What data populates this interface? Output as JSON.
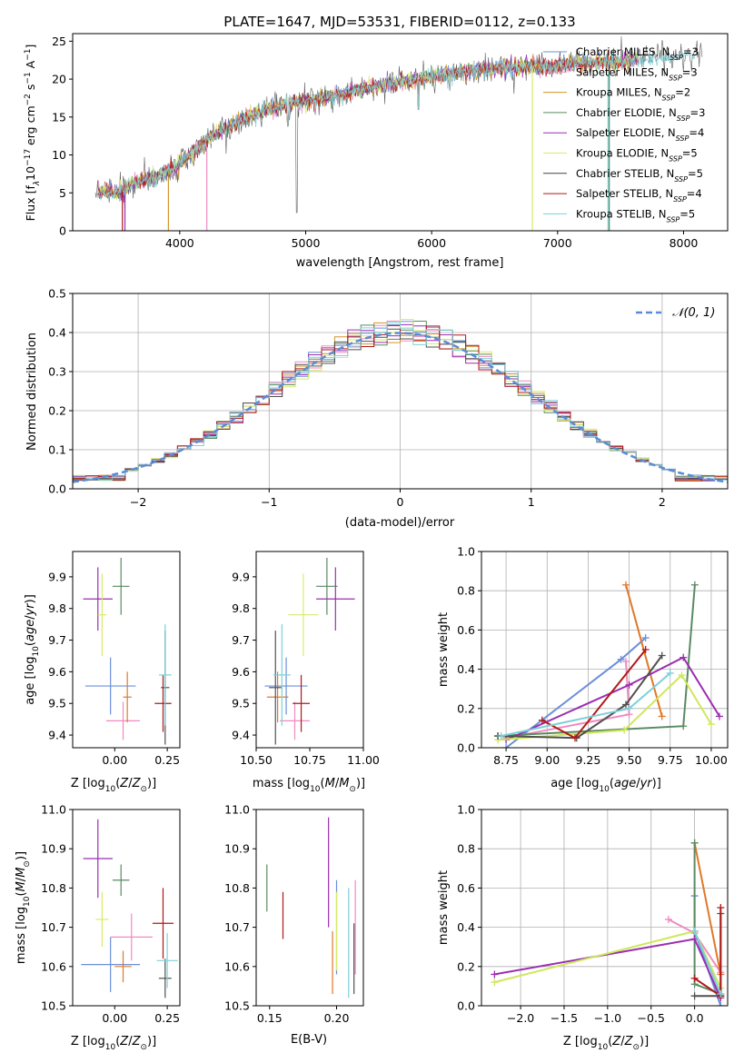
{
  "colors": {
    "series": [
      "#6a8fd8",
      "#f08ac0",
      "#d4932a",
      "#5a8a62",
      "#9a2fb0",
      "#d8ea6a",
      "#505050",
      "#b01818",
      "#7ed0d8"
    ],
    "errorbars": [
      "#6a8fd8",
      "#f08ac0",
      "#e07828",
      "#5a8a62",
      "#9a2fb0",
      "#d8ea6a",
      "#505050",
      "#b01818",
      "#7ed0d8"
    ],
    "weights": [
      "#6a8fd8",
      "#f08ac0",
      "#e07828",
      "#5a8a62",
      "#9a2fb0",
      "#cfe85a",
      "#505050",
      "#b01818",
      "#7ed0d8"
    ],
    "gauss": "#5b8bd6",
    "grid": "#b0b0b0"
  },
  "chart_data": [
    {
      "id": "spectrum",
      "type": "line",
      "title": "PLATE=1647, MJD=53531, FIBERID=0112, z=0.133",
      "xlabel": "wavelength [Angstrom, rest frame]",
      "ylabel": "Flux [f_λ10^-17 erg cm^-2 s^-1 A^-1]",
      "xlim": [
        3150,
        8350
      ],
      "ylim": [
        0,
        26
      ],
      "xticks": [
        4000,
        5000,
        6000,
        7000,
        8000
      ],
      "yticks": [
        0,
        5,
        10,
        15,
        20,
        25
      ],
      "legend": [
        "Chabrier MILES, N_SSP=3",
        "Salpeter MILES, N_SSP=3",
        "Kroupa MILES, N_SSP=2",
        "Chabrier ELODIE, N_SSP=3",
        "Salpeter ELODIE, N_SSP=4",
        "Kroupa ELODIE, N_SSP=5",
        "Chabrier STELIB, N_SSP=5",
        "Salpeter STELIB, N_SSP=4",
        "Kroupa STELIB, N_SSP=5"
      ],
      "legend_position": "upper right",
      "wavelength": [
        3350,
        3500,
        3650,
        3800,
        3950,
        4100,
        4250,
        4400,
        4550,
        4700,
        4850,
        5000,
        5150,
        5300,
        5450,
        5600,
        5750,
        5900,
        6050,
        6200,
        6350,
        6500,
        6650,
        6800,
        6950,
        7100,
        7250,
        7400,
        7550,
        7700,
        7850,
        8000,
        8100
      ],
      "flux": [
        5.2,
        5.0,
        6.5,
        7.0,
        8.3,
        10.2,
        12.5,
        13.8,
        15.1,
        16.0,
        16.8,
        17.2,
        17.5,
        18.1,
        18.7,
        19.2,
        19.6,
        20.0,
        20.5,
        20.9,
        21.2,
        21.4,
        21.6,
        21.8,
        21.5,
        22.0,
        22.2,
        22.1,
        22.4,
        22.6,
        22.9,
        23.1,
        23.3
      ],
      "grid": false
    },
    {
      "id": "residuals",
      "type": "histogram",
      "xlabel": "(data-model)/error",
      "ylabel": "Normed distribution",
      "xlim": [
        -2.5,
        2.5
      ],
      "ylim": [
        0,
        0.5
      ],
      "xticks": [
        -2,
        -1,
        0,
        1,
        2
      ],
      "yticks": [
        0.0,
        0.1,
        0.2,
        0.3,
        0.4,
        0.5
      ],
      "legend": [
        "𝒩(0, 1)"
      ],
      "legend_position": "upper right",
      "bin_width": 0.1,
      "grid": true
    },
    {
      "id": "age_vs_Z",
      "type": "errorbar",
      "xlabel": "Z [log10(Z/Z⊙)]",
      "ylabel": "age  [log10(age/yr)]",
      "xlim": [
        -0.2,
        0.31
      ],
      "ylim": [
        9.36,
        9.98
      ],
      "xticks": [
        0.0,
        0.25
      ],
      "xticklabels": [
        "0.00",
        "0.25"
      ],
      "yticks": [
        9.4,
        9.5,
        9.6,
        9.7,
        9.8,
        9.9
      ],
      "points": [
        {
          "x": -0.02,
          "xerr": 0.12,
          "y": 9.555,
          "yerr": 0.09
        },
        {
          "x": 0.04,
          "xerr": 0.08,
          "y": 9.445,
          "yerr": 0.06
        },
        {
          "x": 0.06,
          "xerr": 0.02,
          "y": 9.52,
          "yerr": 0.08
        },
        {
          "x": 0.03,
          "xerr": 0.04,
          "y": 9.87,
          "yerr": 0.09
        },
        {
          "x": -0.08,
          "xerr": 0.07,
          "y": 9.83,
          "yerr": 0.1
        },
        {
          "x": -0.06,
          "xerr": 0.02,
          "y": 9.78,
          "yerr": 0.13
        },
        {
          "x": 0.24,
          "xerr": 0.02,
          "y": 9.55,
          "yerr": 0.18
        },
        {
          "x": 0.23,
          "xerr": 0.04,
          "y": 9.5,
          "yerr": 0.09
        },
        {
          "x": 0.24,
          "xerr": 0.03,
          "y": 9.59,
          "yerr": 0.16
        }
      ]
    },
    {
      "id": "age_vs_mass",
      "type": "errorbar",
      "xlabel": "mass [log10(M/M⊙)]",
      "xlim": [
        10.5,
        11.0
      ],
      "ylim": [
        9.36,
        9.98
      ],
      "xticks": [
        10.5,
        10.75,
        11.0
      ],
      "xticklabels": [
        "10.50",
        "10.75",
        "11.00"
      ],
      "yticks": [
        9.4,
        9.5,
        9.6,
        9.7,
        9.8,
        9.9
      ],
      "points": [
        {
          "x": 10.64,
          "xerr": 0.1,
          "y": 9.555,
          "yerr": 0.09
        },
        {
          "x": 10.68,
          "xerr": 0.07,
          "y": 9.445,
          "yerr": 0.06
        },
        {
          "x": 10.6,
          "xerr": 0.05,
          "y": 9.52,
          "yerr": 0.08
        },
        {
          "x": 10.83,
          "xerr": 0.05,
          "y": 9.87,
          "yerr": 0.09
        },
        {
          "x": 10.87,
          "xerr": 0.09,
          "y": 9.83,
          "yerr": 0.1
        },
        {
          "x": 10.72,
          "xerr": 0.07,
          "y": 9.78,
          "yerr": 0.13
        },
        {
          "x": 10.59,
          "xerr": 0.03,
          "y": 9.55,
          "yerr": 0.18
        },
        {
          "x": 10.71,
          "xerr": 0.04,
          "y": 9.5,
          "yerr": 0.09
        },
        {
          "x": 10.62,
          "xerr": 0.04,
          "y": 9.59,
          "yerr": 0.16
        }
      ]
    },
    {
      "id": "weights_vs_age",
      "type": "line",
      "xlabel": "age  [log10(age/yr)]",
      "ylabel": "mass weight",
      "xlim": [
        8.6,
        10.1
      ],
      "ylim": [
        0.0,
        1.0
      ],
      "xticks": [
        8.75,
        9.0,
        9.25,
        9.5,
        9.75,
        10.0
      ],
      "xticklabels": [
        "8.75",
        "9.00",
        "9.25",
        "9.50",
        "9.75",
        "10.00"
      ],
      "yticks": [
        0.0,
        0.2,
        0.4,
        0.6,
        0.8,
        1.0
      ],
      "grid": true,
      "series": [
        {
          "x": [
            8.75,
            9.45,
            9.6
          ],
          "y": [
            0.0,
            0.45,
            0.56
          ]
        },
        {
          "x": [
            8.75,
            9.5,
            9.48
          ],
          "y": [
            0.05,
            0.17,
            0.44
          ]
        },
        {
          "x": [
            9.48,
            9.7
          ],
          "y": [
            0.83,
            0.16
          ]
        },
        {
          "x": [
            8.7,
            9.83,
            9.9
          ],
          "y": [
            0.06,
            0.11,
            0.83
          ]
        },
        {
          "x": [
            8.75,
            9.5,
            9.83,
            10.05
          ],
          "y": [
            0.04,
            0.32,
            0.46,
            0.16
          ]
        },
        {
          "x": [
            8.7,
            9.47,
            9.82,
            10.0
          ],
          "y": [
            0.04,
            0.09,
            0.37,
            0.12
          ]
        },
        {
          "x": [
            8.7,
            9.18,
            9.48,
            9.7
          ],
          "y": [
            0.06,
            0.05,
            0.22,
            0.47
          ]
        },
        {
          "x": [
            8.97,
            9.17,
            9.6
          ],
          "y": [
            0.14,
            0.05,
            0.5
          ]
        },
        {
          "x": [
            8.72,
            9.5,
            9.75
          ],
          "y": [
            0.06,
            0.2,
            0.38
          ]
        }
      ]
    },
    {
      "id": "mass_vs_Z",
      "type": "errorbar",
      "xlabel": "Z [log10(Z/Z⊙)]",
      "ylabel": "mass [log10(M/M⊙)]",
      "xlim": [
        -0.2,
        0.31
      ],
      "ylim": [
        10.5,
        11.0
      ],
      "xticks": [
        0.0,
        0.25
      ],
      "xticklabels": [
        "0.00",
        "0.25"
      ],
      "yticks": [
        10.5,
        10.6,
        10.7,
        10.8,
        10.9,
        11.0
      ],
      "points": [
        {
          "x": -0.02,
          "xerr": 0.14,
          "y": 10.605,
          "yerr": 0.07
        },
        {
          "x": 0.08,
          "xerr": 0.1,
          "y": 10.675,
          "yerr": 0.06
        },
        {
          "x": 0.04,
          "xerr": 0.04,
          "y": 10.6,
          "yerr": 0.04
        },
        {
          "x": 0.03,
          "xerr": 0.04,
          "y": 10.82,
          "yerr": 0.04
        },
        {
          "x": -0.08,
          "xerr": 0.07,
          "y": 10.875,
          "yerr": 0.1
        },
        {
          "x": -0.06,
          "xerr": 0.03,
          "y": 10.72,
          "yerr": 0.07
        },
        {
          "x": 0.24,
          "xerr": 0.03,
          "y": 10.57,
          "yerr": 0.05
        },
        {
          "x": 0.23,
          "xerr": 0.05,
          "y": 10.71,
          "yerr": 0.09
        },
        {
          "x": 0.25,
          "xerr": 0.05,
          "y": 10.615,
          "yerr": 0.07
        }
      ]
    },
    {
      "id": "mass_vs_EBV",
      "type": "errorbar",
      "xlabel": "E(B-V)",
      "xlim": [
        0.14,
        0.22
      ],
      "ylim": [
        10.5,
        11.0
      ],
      "xticks": [
        0.15,
        0.2
      ],
      "xticklabels": [
        "0.15",
        "0.20"
      ],
      "yticks": [
        10.5,
        10.6,
        10.7,
        10.8,
        10.9,
        11.0
      ],
      "points": [
        {
          "x": 0.2,
          "y": 10.7,
          "yerr": 0.12
        },
        {
          "x": 0.214,
          "y": 10.7,
          "yerr": 0.12
        },
        {
          "x": 0.197,
          "y": 10.61,
          "yerr": 0.08
        },
        {
          "x": 0.148,
          "y": 10.8,
          "yerr": 0.06
        },
        {
          "x": 0.194,
          "y": 10.84,
          "yerr": 0.14
        },
        {
          "x": 0.2,
          "y": 10.69,
          "yerr": 0.1
        },
        {
          "x": 0.213,
          "y": 10.62,
          "yerr": 0.09
        },
        {
          "x": 0.16,
          "y": 10.73,
          "yerr": 0.06
        },
        {
          "x": 0.209,
          "y": 10.66,
          "yerr": 0.14
        }
      ]
    },
    {
      "id": "weights_vs_Z",
      "type": "line",
      "xlabel": "Z [log10(Z/Z⊙)]",
      "ylabel": "mass weight",
      "xlim": [
        -2.45,
        0.38
      ],
      "ylim": [
        0.0,
        1.0
      ],
      "xticks": [
        -2.0,
        -1.5,
        -1.0,
        -0.5,
        0.0
      ],
      "xticklabels": [
        "−2.0",
        "−1.5",
        "−1.0",
        "−0.5",
        "0.0"
      ],
      "yticks": [
        0.0,
        0.2,
        0.4,
        0.6,
        0.8,
        1.0
      ],
      "grid": true,
      "series": [
        {
          "x": [
            0.0,
            0.0,
            0.3
          ],
          "y": [
            0.56,
            0.38,
            0.0
          ]
        },
        {
          "x": [
            -0.3,
            0.0,
            0.3
          ],
          "y": [
            0.44,
            0.37,
            0.17
          ]
        },
        {
          "x": [
            0.0,
            0.3
          ],
          "y": [
            0.83,
            0.16
          ]
        },
        {
          "x": [
            0.0,
            0.0,
            0.3
          ],
          "y": [
            0.83,
            0.11,
            0.06
          ]
        },
        {
          "x": [
            -2.3,
            0.0,
            0.3
          ],
          "y": [
            0.16,
            0.34,
            0.04
          ]
        },
        {
          "x": [
            -2.3,
            0.0,
            0.3
          ],
          "y": [
            0.12,
            0.38,
            0.09
          ]
        },
        {
          "x": [
            0.0,
            0.3,
            0.3
          ],
          "y": [
            0.05,
            0.05,
            0.47
          ]
        },
        {
          "x": [
            0.0,
            0.3,
            0.3
          ],
          "y": [
            0.14,
            0.05,
            0.5
          ]
        },
        {
          "x": [
            0.0,
            0.3
          ],
          "y": [
            0.38,
            0.06
          ]
        }
      ]
    }
  ]
}
